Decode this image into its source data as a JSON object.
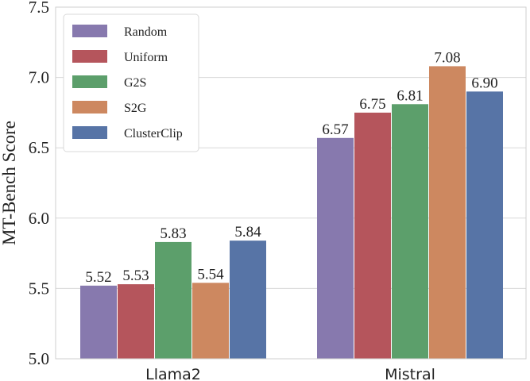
{
  "chart_data": {
    "type": "bar",
    "title": "",
    "xlabel": "",
    "ylabel": "MT-Bench Score",
    "ylim": [
      5.0,
      7.5
    ],
    "yticks": [
      "5.0",
      "5.5",
      "6.0",
      "6.5",
      "7.0",
      "7.5"
    ],
    "grid": "horizontal",
    "legend_position": "top-left",
    "categories": [
      "Llama2",
      "Mistral"
    ],
    "series": [
      {
        "name": "Random",
        "color": "#8779AE",
        "values": [
          5.52,
          6.57
        ],
        "labels": [
          "5.52",
          "6.57"
        ]
      },
      {
        "name": "Uniform",
        "color": "#B5555C",
        "values": [
          5.53,
          6.75
        ],
        "labels": [
          "5.53",
          "6.75"
        ]
      },
      {
        "name": "G2S",
        "color": "#5C9F6B",
        "values": [
          5.83,
          6.81
        ],
        "labels": [
          "5.83",
          "6.81"
        ]
      },
      {
        "name": "S2G",
        "color": "#CD8860",
        "values": [
          5.54,
          7.08
        ],
        "labels": [
          "5.54",
          "7.08"
        ]
      },
      {
        "name": "ClusterClip",
        "color": "#5774A6",
        "values": [
          5.84,
          6.9
        ],
        "labels": [
          "5.84",
          "6.90"
        ]
      }
    ]
  }
}
